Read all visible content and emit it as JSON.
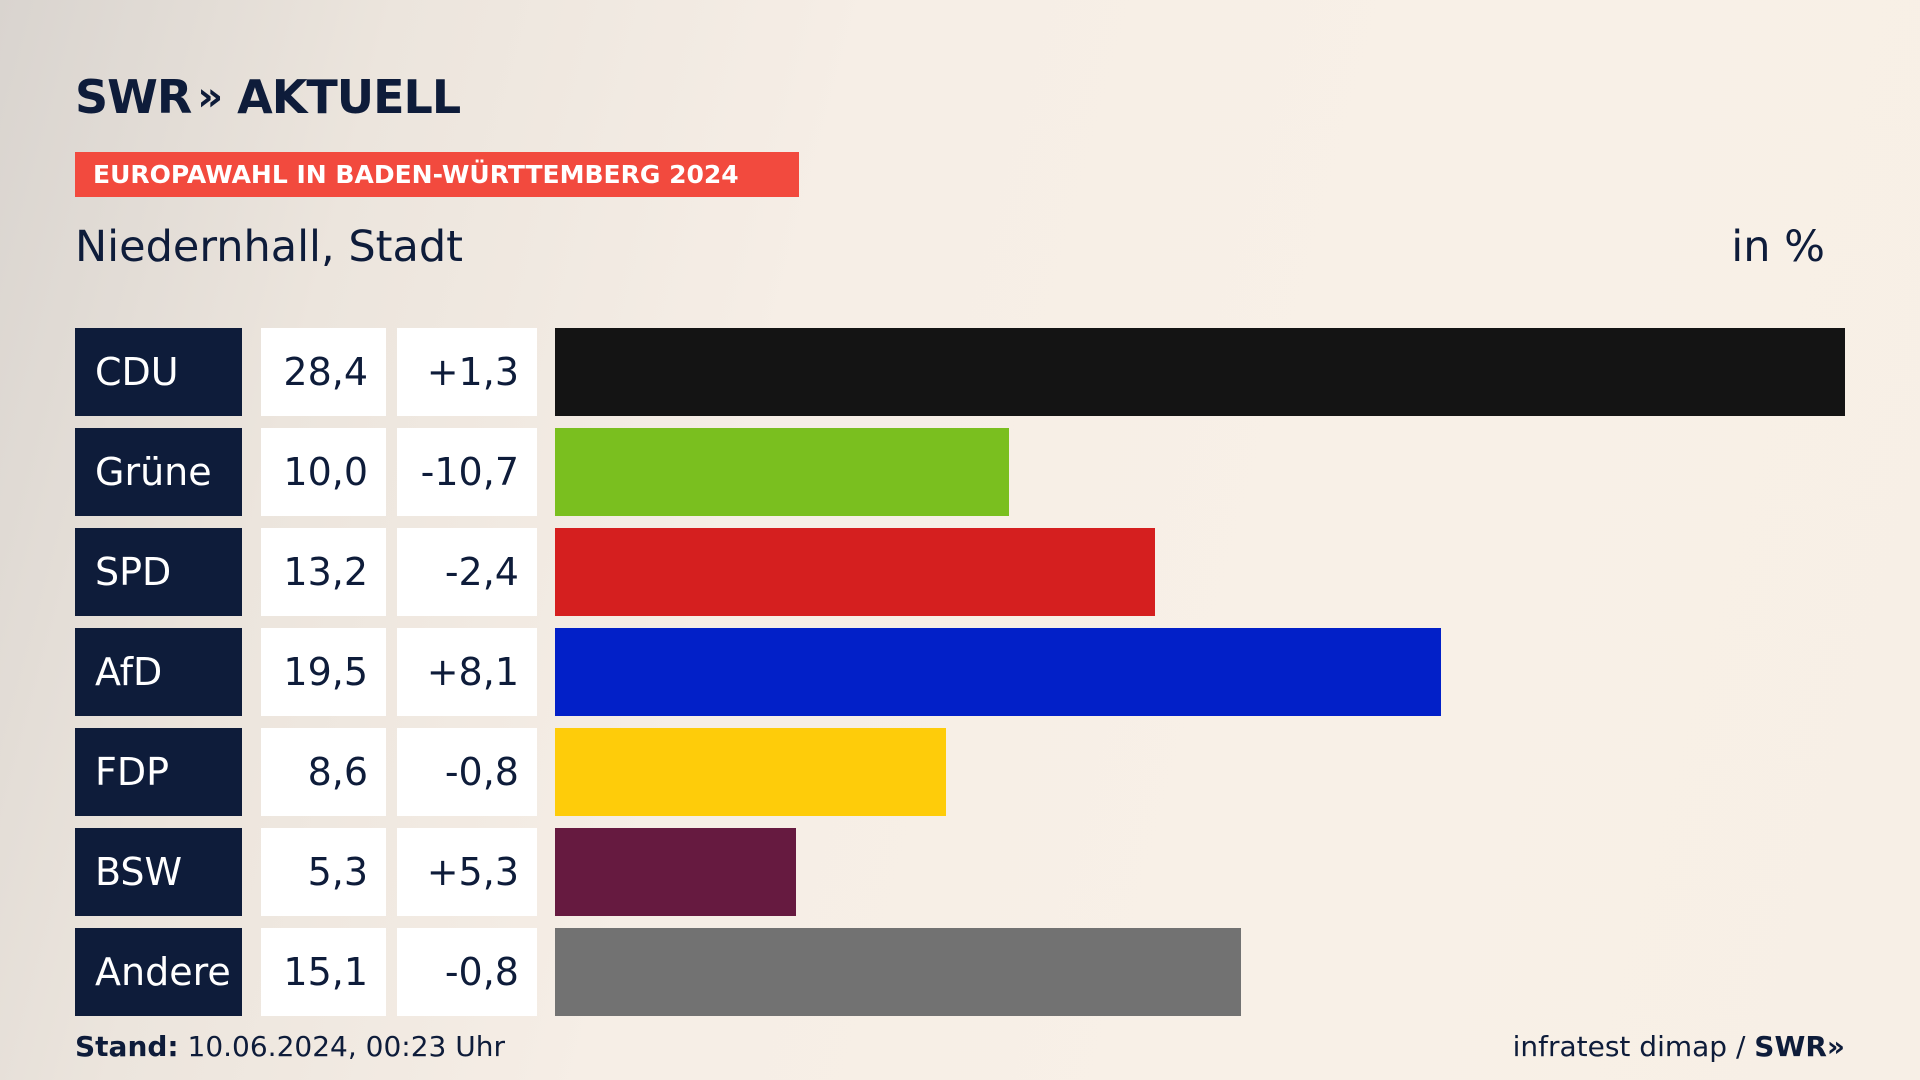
{
  "header": {
    "logo_text": "SWR",
    "logo_chevrons": "»",
    "logo_suffix": "AKTUELL",
    "banner": "EUROPAWAHL IN BADEN-WÜRTTEMBERG 2024",
    "place": "Niedernhall, Stadt",
    "unit": "in %"
  },
  "chart_data": {
    "type": "bar",
    "orientation": "horizontal",
    "title": "Niedernhall, Stadt",
    "unit": "in %",
    "categories": [
      "CDU",
      "Grüne",
      "SPD",
      "AfD",
      "FDP",
      "BSW",
      "Andere"
    ],
    "values": [
      28.4,
      10.0,
      13.2,
      19.5,
      8.6,
      5.3,
      15.1
    ],
    "value_labels": [
      "28,4",
      "10,0",
      "13,2",
      "19,5",
      "8,6",
      "5,3",
      "15,1"
    ],
    "diff_labels": [
      "+1,3",
      "-10,7",
      "-2,4",
      "+8,1",
      "-0,8",
      "+5,3",
      "-0,8"
    ],
    "diffs": [
      1.3,
      -10.7,
      -2.4,
      8.1,
      -0.8,
      5.3,
      -0.8
    ],
    "colors": [
      "#141414",
      "#7abf1f",
      "#d51f1f",
      "#0220c8",
      "#fecc0a",
      "#661a40",
      "#727272"
    ],
    "xlim": [
      0,
      28.4
    ],
    "grid": false,
    "legend": "none"
  },
  "footer": {
    "stand_label": "Stand:",
    "stand_value": " 10.06.2024, 00:23 Uhr",
    "source": "infratest dimap / ",
    "source_brand": "SWR»"
  }
}
